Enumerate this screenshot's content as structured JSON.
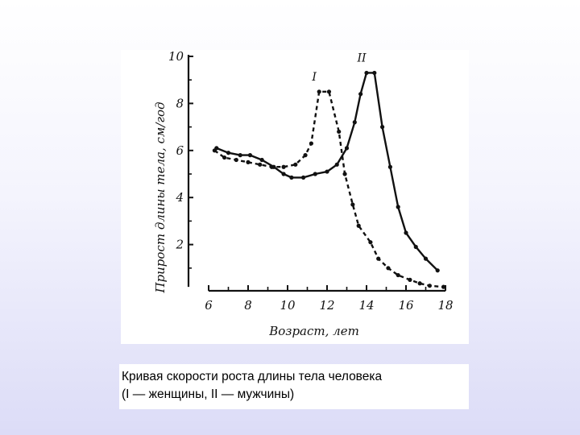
{
  "chart_data": {
    "type": "line",
    "xlabel": "Возраст, лет",
    "ylabel": "Прирост длины тела, см/год",
    "xlim": [
      6,
      18
    ],
    "ylim": [
      0,
      10
    ],
    "x_ticks": [
      "6",
      "8",
      "10",
      "12",
      "14",
      "16",
      "18"
    ],
    "y_ticks": [
      "2",
      "4",
      "6",
      "8",
      "10"
    ],
    "grid": false,
    "series": [
      {
        "name": "I",
        "style": "dashed",
        "points": [
          [
            6.3,
            6.0
          ],
          [
            6.8,
            5.7
          ],
          [
            7.4,
            5.6
          ],
          [
            8.0,
            5.5
          ],
          [
            8.6,
            5.4
          ],
          [
            9.2,
            5.3
          ],
          [
            9.8,
            5.3
          ],
          [
            10.4,
            5.4
          ],
          [
            10.9,
            5.8
          ],
          [
            11.2,
            6.3
          ],
          [
            11.6,
            8.5
          ],
          [
            12.1,
            8.5
          ],
          [
            12.6,
            6.8
          ],
          [
            12.9,
            5.0
          ],
          [
            13.3,
            3.7
          ],
          [
            13.6,
            2.8
          ],
          [
            14.2,
            2.1
          ],
          [
            14.6,
            1.4
          ],
          [
            15.1,
            1.0
          ],
          [
            15.6,
            0.7
          ],
          [
            16.2,
            0.5
          ],
          [
            16.7,
            0.35
          ],
          [
            17.2,
            0.25
          ],
          [
            17.9,
            0.2
          ]
        ]
      },
      {
        "name": "II",
        "style": "solid",
        "points": [
          [
            6.4,
            6.1
          ],
          [
            7.0,
            5.9
          ],
          [
            7.6,
            5.8
          ],
          [
            8.1,
            5.8
          ],
          [
            8.7,
            5.6
          ],
          [
            9.3,
            5.3
          ],
          [
            9.8,
            5.0
          ],
          [
            10.2,
            4.85
          ],
          [
            10.8,
            4.85
          ],
          [
            11.4,
            5.0
          ],
          [
            12.0,
            5.1
          ],
          [
            12.5,
            5.4
          ],
          [
            13.0,
            6.1
          ],
          [
            13.4,
            7.2
          ],
          [
            13.7,
            8.4
          ],
          [
            14.0,
            9.3
          ],
          [
            14.4,
            9.3
          ],
          [
            14.8,
            7.0
          ],
          [
            15.2,
            5.3
          ],
          [
            15.6,
            3.6
          ],
          [
            16.0,
            2.5
          ],
          [
            16.5,
            1.9
          ],
          [
            17.0,
            1.4
          ],
          [
            17.6,
            0.9
          ]
        ]
      }
    ]
  },
  "caption": {
    "line1": "Кривая скорости роста длины тела человека",
    "line2": "(I — женщины, II — мужчины)"
  },
  "colors": {
    "ink": "#111111",
    "background_top": "#ffffff",
    "background_bottom": "#dcdcf7"
  }
}
